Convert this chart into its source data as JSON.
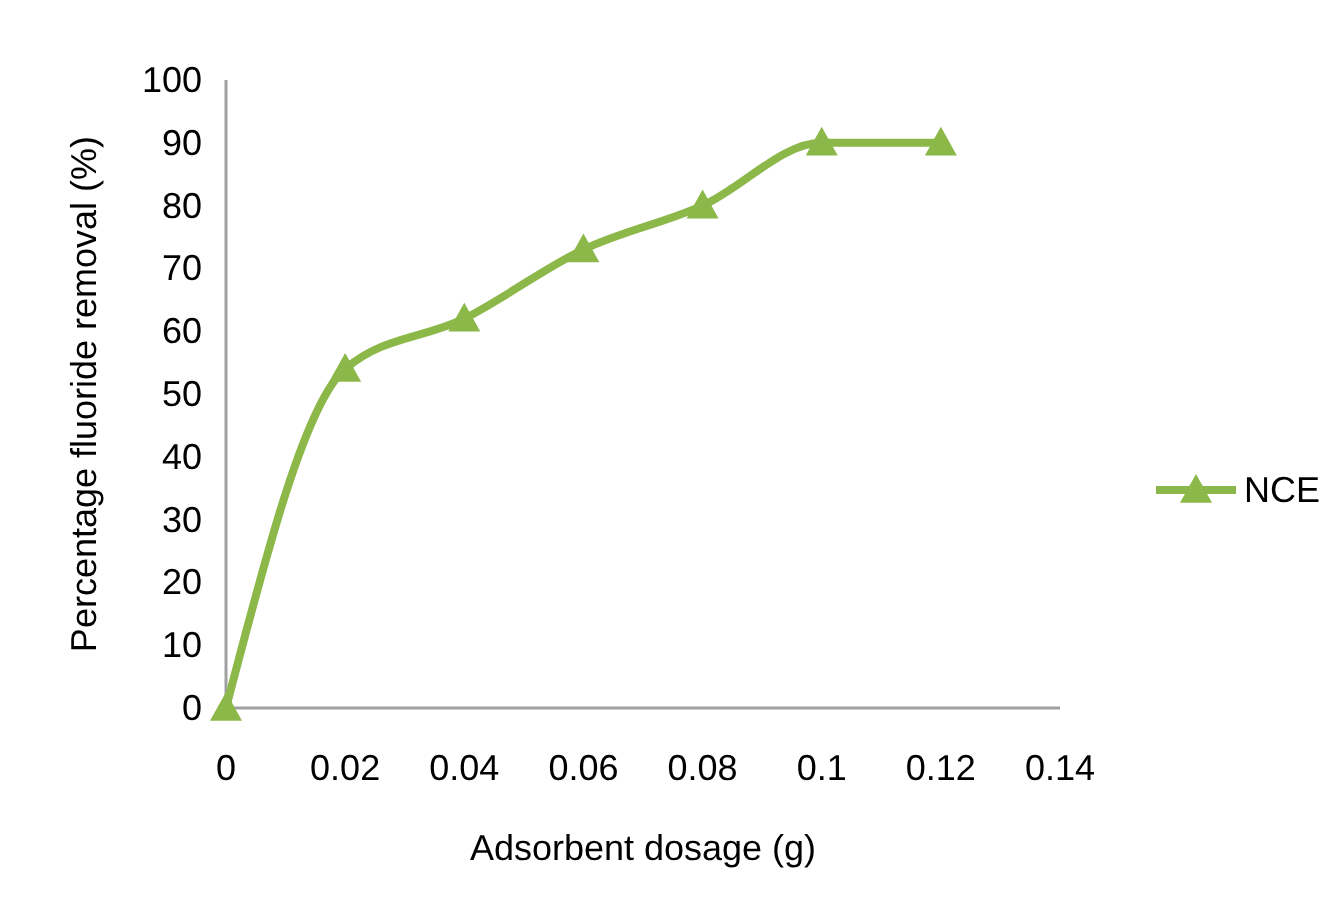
{
  "chart_data": {
    "type": "line",
    "xlabel": "Adsorbent dosage (g)",
    "ylabel": "Percentage fluoride removal (%)",
    "x": [
      0,
      0.02,
      0.04,
      0.06,
      0.08,
      0.1,
      0.12
    ],
    "series": [
      {
        "name": "NCE",
        "color": "#8cb84a",
        "values": [
          0,
          54,
          62,
          73,
          80,
          90,
          90
        ]
      }
    ],
    "xlim": [
      0,
      0.14
    ],
    "xticks": [
      {
        "value": 0,
        "label": "0"
      },
      0.02,
      0.04,
      0.06,
      0.08,
      0.1,
      0.12,
      0.14
    ],
    "ylim": [
      0,
      100
    ],
    "yticks": [
      0,
      10,
      20,
      30,
      40,
      50,
      60,
      70,
      80,
      90,
      100
    ],
    "grid": false,
    "legend": "right",
    "marker": "triangle",
    "line_style": "solid"
  }
}
